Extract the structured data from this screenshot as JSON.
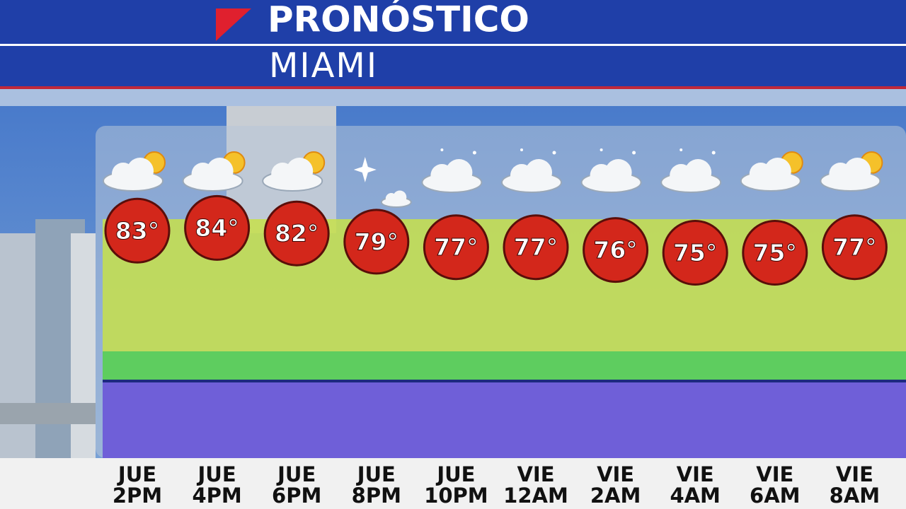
{
  "chart_data": {
    "type": "line",
    "title": "PRONÓSTICO",
    "subtitle": "MIAMI",
    "categories": [
      "JUE 2PM",
      "JUE 4PM",
      "JUE 6PM",
      "JUE 8PM",
      "JUE 10PM",
      "VIE 12AM",
      "VIE 2AM",
      "VIE 4AM",
      "VIE 6AM",
      "VIE 8AM"
    ],
    "values": [
      83,
      84,
      82,
      79,
      77,
      77,
      76,
      75,
      75,
      77
    ],
    "value_labels": [
      "83°",
      "84°",
      "82°",
      "79°",
      "77°",
      "77°",
      "76°",
      "75°",
      "75°",
      "77°"
    ],
    "color": "#d3271b",
    "ylim": [
      70,
      90
    ]
  }
}
